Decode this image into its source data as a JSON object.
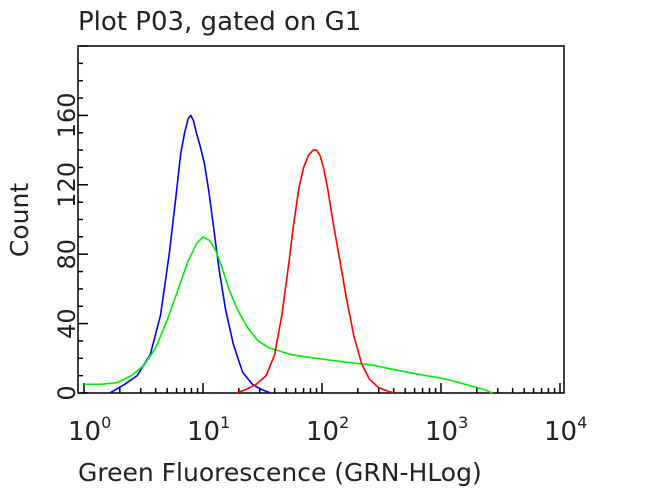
{
  "chart_data": {
    "type": "line",
    "title": "Plot P03, gated on G1",
    "xlabel": "Green Fluorescence (GRN-HLog)",
    "ylabel": "Count",
    "x_scale": "log",
    "xlim": [
      1,
      10000
    ],
    "ylim": [
      0,
      200
    ],
    "x_ticks": [
      {
        "base": "10",
        "exp": "0",
        "value": 1
      },
      {
        "base": "10",
        "exp": "1",
        "value": 10
      },
      {
        "base": "10",
        "exp": "2",
        "value": 100
      },
      {
        "base": "10",
        "exp": "3",
        "value": 1000
      },
      {
        "base": "10",
        "exp": "4",
        "value": 10000
      }
    ],
    "y_ticks": [
      "0",
      "40",
      "80",
      "120",
      "160"
    ],
    "grid": false,
    "legend": "none",
    "series": [
      {
        "color": "#0000ff",
        "x": [
          1.65,
          2.2,
          2.8,
          3.6,
          4.4,
          5.2,
          5.9,
          6.5,
          7.0,
          7.5,
          7.9,
          8.3,
          8.8,
          9.5,
          10.3,
          11.2,
          12.3,
          13.6,
          15.5,
          18.0,
          21.5,
          26.0,
          31.0,
          37.0
        ],
        "y": [
          0,
          5,
          10,
          22,
          45,
          80,
          112,
          138,
          150,
          158,
          160,
          157,
          150,
          142,
          132,
          116,
          95,
          72,
          48,
          28,
          12,
          5,
          2,
          0
        ]
      },
      {
        "color": "#00ee00",
        "x": [
          1.0,
          1.4,
          1.9,
          2.5,
          3.2,
          4.0,
          5.0,
          6.2,
          7.5,
          8.8,
          10.0,
          11.3,
          12.8,
          14.5,
          16.5,
          19.5,
          23.5,
          29.0,
          36.0,
          45.0,
          56.0,
          70.0,
          90.0,
          115.0,
          150.0,
          200.0,
          270.0,
          370.0,
          520.0,
          750.0,
          1100.0,
          1600.0,
          2300.0,
          2700.0
        ],
        "y": [
          5,
          5,
          6,
          10,
          16,
          26,
          42,
          60,
          76,
          86,
          90,
          88,
          82,
          72,
          60,
          48,
          38,
          30,
          26,
          24,
          22,
          21,
          20,
          19,
          18,
          17,
          16,
          14,
          12,
          10,
          8,
          5,
          2,
          0
        ]
      },
      {
        "color": "#ff0000",
        "x": [
          19.0,
          23.0,
          28.0,
          34.0,
          40.0,
          46.0,
          52.0,
          58.0,
          64.0,
          70.0,
          77.0,
          84.0,
          90.0,
          96.0,
          103.0,
          112.0,
          125.0,
          140.0,
          160.0,
          185.0,
          215.0,
          250.0,
          300.0,
          360.0,
          400.0
        ],
        "y": [
          0,
          2,
          5,
          10,
          22,
          45,
          72,
          98,
          118,
          130,
          137,
          140,
          140,
          137,
          130,
          117,
          97,
          78,
          55,
          33,
          17,
          8,
          3,
          1,
          0
        ]
      }
    ]
  }
}
